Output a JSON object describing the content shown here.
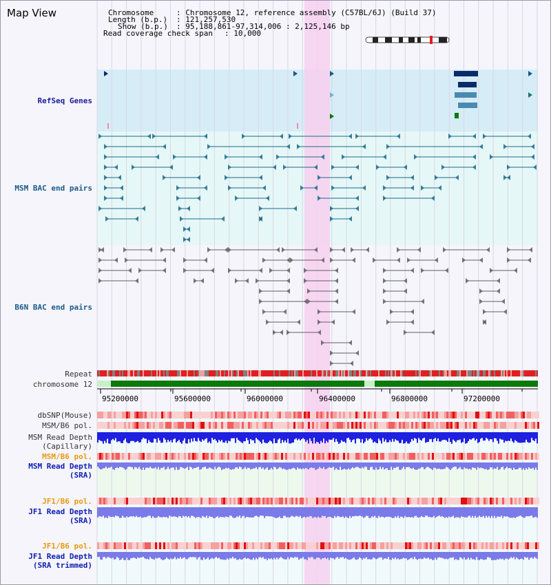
{
  "title": "Map View",
  "header": {
    "chromosome_key": "Chromosome",
    "chromosome_value": ": Chromosome 12, reference assembly (C57BL/6J) (Build 37)",
    "length_key": "Length (b.p.)",
    "length_value": ": 121,257,530",
    "show_key": "Show (b.p.)",
    "show_value": ": 95,188,861-97,314,006 : 2,125,146 bp",
    "span_key": "Read coverage check span",
    "span_value": ": 10,000"
  },
  "tracks": {
    "refseq": "RefSeq Genes",
    "msm_bac": "MSM BAC end pairs",
    "b6n_bac": "B6N BAC end pairs",
    "repeat": "Repeat",
    "chromosome": "chromosome 12",
    "dbsnp": "dbSNP(Mouse)",
    "msm_b6_pol_1": "MSM/B6 pol.",
    "msm_read_depth_cap_1": "MSM Read Depth",
    "msm_read_depth_cap_2": "(Capillary)",
    "msm_b6_pol_2": "MSM/B6 pol.",
    "msm_read_depth_sra_1": "MSM Read Depth",
    "msm_read_depth_sra_2": "(SRA)",
    "jf1_b6_pol_1": "JF1/B6 pol.",
    "jf1_read_depth_sra_1": "JF1 Read Depth",
    "jf1_read_depth_sra_2": "(SRA)",
    "jf1_b6_pol_2": "JF1/B6 pol.",
    "jf1_read_depth_trim_1": "JF1 Read Depth",
    "jf1_read_depth_trim_2": "(SRA trimmed)"
  },
  "axis": {
    "ticks": [
      "95200000",
      "95600000",
      "96000000",
      "96400000",
      "96800000",
      "97200000"
    ]
  },
  "colors": {
    "highlight": "#f7d0f0",
    "refseq_bg": "#d6ecf7",
    "msm_bg": "#e6f7f7",
    "msm_line": "#1a6a8a",
    "b6n_line": "#606060",
    "repeat_red": "#e02020",
    "chrom_green": "#0a7a0a",
    "depth_blue": "#2020e0",
    "depth_light": "#7a7ae8"
  }
}
